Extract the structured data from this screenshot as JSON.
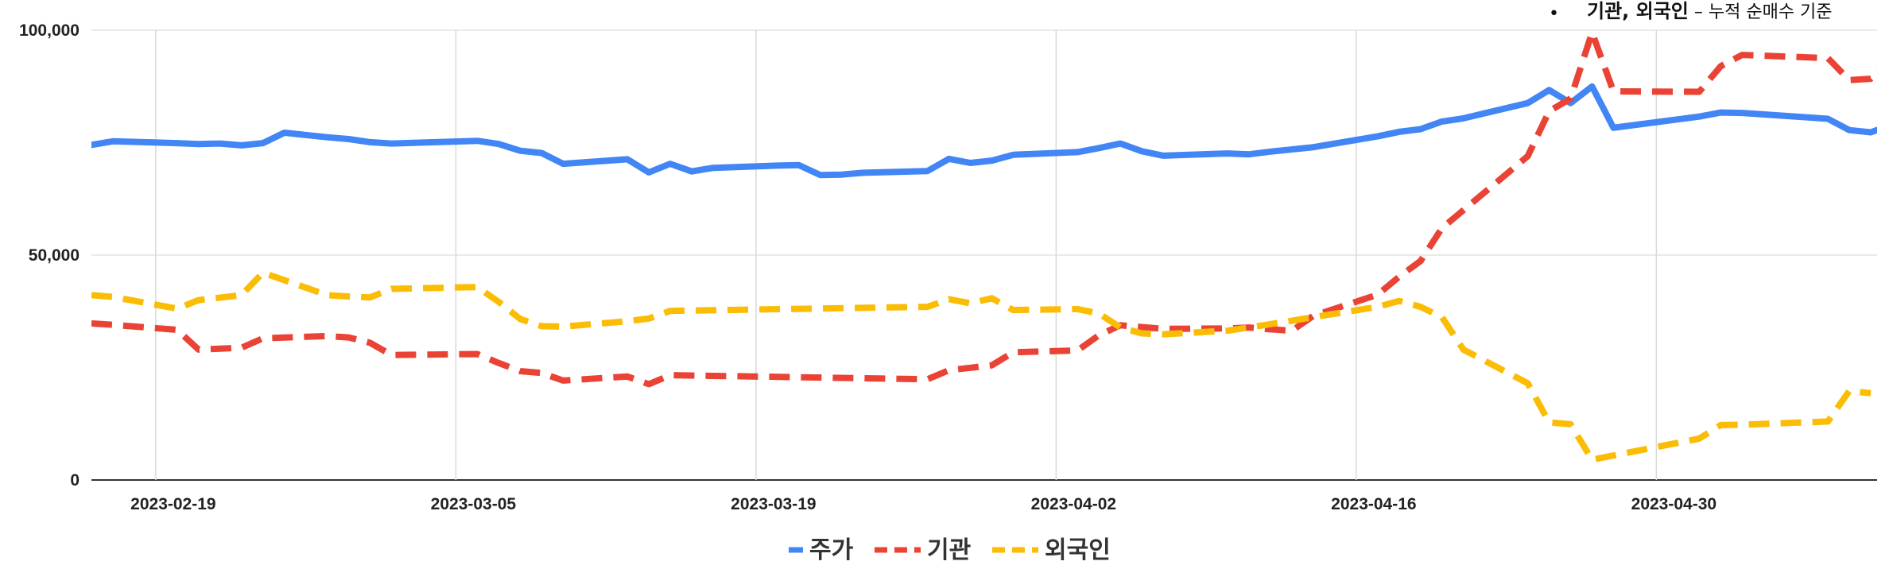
{
  "annotation": {
    "bullet": "•",
    "main": "기관, 외국인",
    "dash": " – ",
    "detail": "누적 순매수 기준"
  },
  "chart_data": {
    "type": "line",
    "title": "",
    "xlabel": "",
    "ylabel": "",
    "ylim": [
      0,
      100000
    ],
    "yticks": [
      "0",
      "50,000",
      "100,000"
    ],
    "xlim": [
      "2023-02-16",
      "2023-05-10"
    ],
    "xticks": [
      "2023-02-19",
      "2023-03-05",
      "2023-03-19",
      "2023-04-02",
      "2023-04-16",
      "2023-04-30"
    ],
    "grid": true,
    "legend_position": "bottom",
    "series": [
      {
        "name": "주가",
        "color": "#4285F4",
        "style": "solid",
        "points": [
          [
            "2023-02-16",
            74500
          ],
          [
            "2023-02-17",
            75300
          ],
          [
            "2023-02-20",
            74900
          ],
          [
            "2023-02-21",
            74700
          ],
          [
            "2023-02-22",
            74800
          ],
          [
            "2023-02-23",
            74400
          ],
          [
            "2023-02-24",
            74900
          ],
          [
            "2023-02-25",
            77200
          ],
          [
            "2023-02-27",
            76200
          ],
          [
            "2023-02-28",
            75800
          ],
          [
            "2023-03-01",
            75100
          ],
          [
            "2023-03-02",
            74800
          ],
          [
            "2023-03-06",
            75400
          ],
          [
            "2023-03-07",
            74700
          ],
          [
            "2023-03-08",
            73200
          ],
          [
            "2023-03-09",
            72700
          ],
          [
            "2023-03-10",
            70300
          ],
          [
            "2023-03-13",
            71300
          ],
          [
            "2023-03-14",
            68400
          ],
          [
            "2023-03-15",
            70300
          ],
          [
            "2023-03-16",
            68600
          ],
          [
            "2023-03-17",
            69400
          ],
          [
            "2023-03-20",
            69900
          ],
          [
            "2023-03-21",
            70000
          ],
          [
            "2023-03-22",
            67800
          ],
          [
            "2023-03-23",
            67900
          ],
          [
            "2023-03-24",
            68300
          ],
          [
            "2023-03-27",
            68700
          ],
          [
            "2023-03-28",
            71400
          ],
          [
            "2023-03-29",
            70500
          ],
          [
            "2023-03-30",
            71000
          ],
          [
            "2023-03-31",
            72300
          ],
          [
            "2023-04-03",
            72900
          ],
          [
            "2023-04-04",
            73800
          ],
          [
            "2023-04-05",
            74800
          ],
          [
            "2023-04-06",
            73100
          ],
          [
            "2023-04-07",
            72100
          ],
          [
            "2023-04-10",
            72600
          ],
          [
            "2023-04-11",
            72400
          ],
          [
            "2023-04-12",
            73000
          ],
          [
            "2023-04-14",
            74000
          ],
          [
            "2023-04-17",
            76400
          ],
          [
            "2023-04-18",
            77400
          ],
          [
            "2023-04-19",
            78000
          ],
          [
            "2023-04-20",
            79700
          ],
          [
            "2023-04-21",
            80400
          ],
          [
            "2023-04-24",
            83800
          ],
          [
            "2023-04-25",
            86700
          ],
          [
            "2023-04-26",
            83800
          ],
          [
            "2023-04-27",
            87500
          ],
          [
            "2023-04-28",
            78300
          ],
          [
            "2023-05-02",
            80800
          ],
          [
            "2023-05-03",
            81700
          ],
          [
            "2023-05-04",
            81600
          ],
          [
            "2023-05-08",
            80300
          ],
          [
            "2023-05-09",
            77800
          ],
          [
            "2023-05-10",
            77300
          ],
          [
            "2023-05-11",
            79000
          ]
        ]
      },
      {
        "name": "기관",
        "color": "#EA4335",
        "style": "dashed",
        "points": [
          [
            "2023-02-16",
            34800
          ],
          [
            "2023-02-17",
            34500
          ],
          [
            "2023-02-20",
            33400
          ],
          [
            "2023-02-21",
            29000
          ],
          [
            "2023-02-23",
            29400
          ],
          [
            "2023-02-24",
            31500
          ],
          [
            "2023-02-27",
            32000
          ],
          [
            "2023-02-28",
            31700
          ],
          [
            "2023-03-01",
            30500
          ],
          [
            "2023-03-02",
            27800
          ],
          [
            "2023-03-06",
            28000
          ],
          [
            "2023-03-07",
            26000
          ],
          [
            "2023-03-08",
            24200
          ],
          [
            "2023-03-09",
            23800
          ],
          [
            "2023-03-10",
            22100
          ],
          [
            "2023-03-13",
            23000
          ],
          [
            "2023-03-14",
            21300
          ],
          [
            "2023-03-15",
            23300
          ],
          [
            "2023-03-27",
            22400
          ],
          [
            "2023-03-28",
            24400
          ],
          [
            "2023-03-30",
            25500
          ],
          [
            "2023-03-31",
            28400
          ],
          [
            "2023-04-03",
            28800
          ],
          [
            "2023-04-04",
            32200
          ],
          [
            "2023-04-05",
            34400
          ],
          [
            "2023-04-06",
            34000
          ],
          [
            "2023-04-07",
            33600
          ],
          [
            "2023-04-10",
            33700
          ],
          [
            "2023-04-11",
            33900
          ],
          [
            "2023-04-12",
            33500
          ],
          [
            "2023-04-13",
            33200
          ],
          [
            "2023-04-14",
            36500
          ],
          [
            "2023-04-17",
            41200
          ],
          [
            "2023-04-18",
            45200
          ],
          [
            "2023-04-19",
            48700
          ],
          [
            "2023-04-20",
            56000
          ],
          [
            "2023-04-21",
            60000
          ],
          [
            "2023-04-24",
            72000
          ],
          [
            "2023-04-25",
            82000
          ],
          [
            "2023-04-26",
            84800
          ],
          [
            "2023-04-27",
            99500
          ],
          [
            "2023-04-28",
            86400
          ],
          [
            "2023-05-02",
            86300
          ],
          [
            "2023-05-03",
            92000
          ],
          [
            "2023-05-04",
            94500
          ],
          [
            "2023-05-08",
            93800
          ],
          [
            "2023-05-09",
            88900
          ],
          [
            "2023-05-10",
            89200
          ],
          [
            "2023-05-11",
            94000
          ]
        ]
      },
      {
        "name": "외국인",
        "color": "#FBBC04",
        "style": "dashed",
        "points": [
          [
            "2023-02-16",
            41100
          ],
          [
            "2023-02-17",
            40700
          ],
          [
            "2023-02-20",
            38100
          ],
          [
            "2023-02-21",
            40000
          ],
          [
            "2023-02-23",
            41100
          ],
          [
            "2023-02-24",
            46100
          ],
          [
            "2023-02-27",
            41100
          ],
          [
            "2023-02-28",
            40800
          ],
          [
            "2023-03-01",
            40600
          ],
          [
            "2023-03-02",
            42500
          ],
          [
            "2023-03-06",
            42900
          ],
          [
            "2023-03-07",
            39600
          ],
          [
            "2023-03-08",
            35800
          ],
          [
            "2023-03-09",
            34200
          ],
          [
            "2023-03-10",
            34100
          ],
          [
            "2023-03-13",
            35300
          ],
          [
            "2023-03-14",
            35900
          ],
          [
            "2023-03-15",
            37600
          ],
          [
            "2023-03-27",
            38500
          ],
          [
            "2023-03-28",
            40200
          ],
          [
            "2023-03-29",
            39300
          ],
          [
            "2023-03-30",
            40400
          ],
          [
            "2023-03-31",
            37800
          ],
          [
            "2023-04-03",
            38000
          ],
          [
            "2023-04-04",
            37000
          ],
          [
            "2023-04-05",
            33900
          ],
          [
            "2023-04-06",
            32600
          ],
          [
            "2023-04-07",
            32400
          ],
          [
            "2023-04-10",
            33200
          ],
          [
            "2023-04-11",
            33900
          ],
          [
            "2023-04-13",
            35400
          ],
          [
            "2023-04-14",
            36200
          ],
          [
            "2023-04-17",
            38500
          ],
          [
            "2023-04-18",
            39800
          ],
          [
            "2023-04-19",
            38500
          ],
          [
            "2023-04-20",
            36200
          ],
          [
            "2023-04-21",
            29000
          ],
          [
            "2023-04-24",
            21500
          ],
          [
            "2023-04-25",
            12800
          ],
          [
            "2023-04-26",
            12400
          ],
          [
            "2023-04-27",
            4500
          ],
          [
            "2023-05-02",
            9200
          ],
          [
            "2023-05-03",
            12200
          ],
          [
            "2023-05-04",
            12300
          ],
          [
            "2023-05-08",
            13000
          ],
          [
            "2023-05-09",
            19800
          ],
          [
            "2023-05-10",
            19300
          ]
        ]
      }
    ]
  }
}
